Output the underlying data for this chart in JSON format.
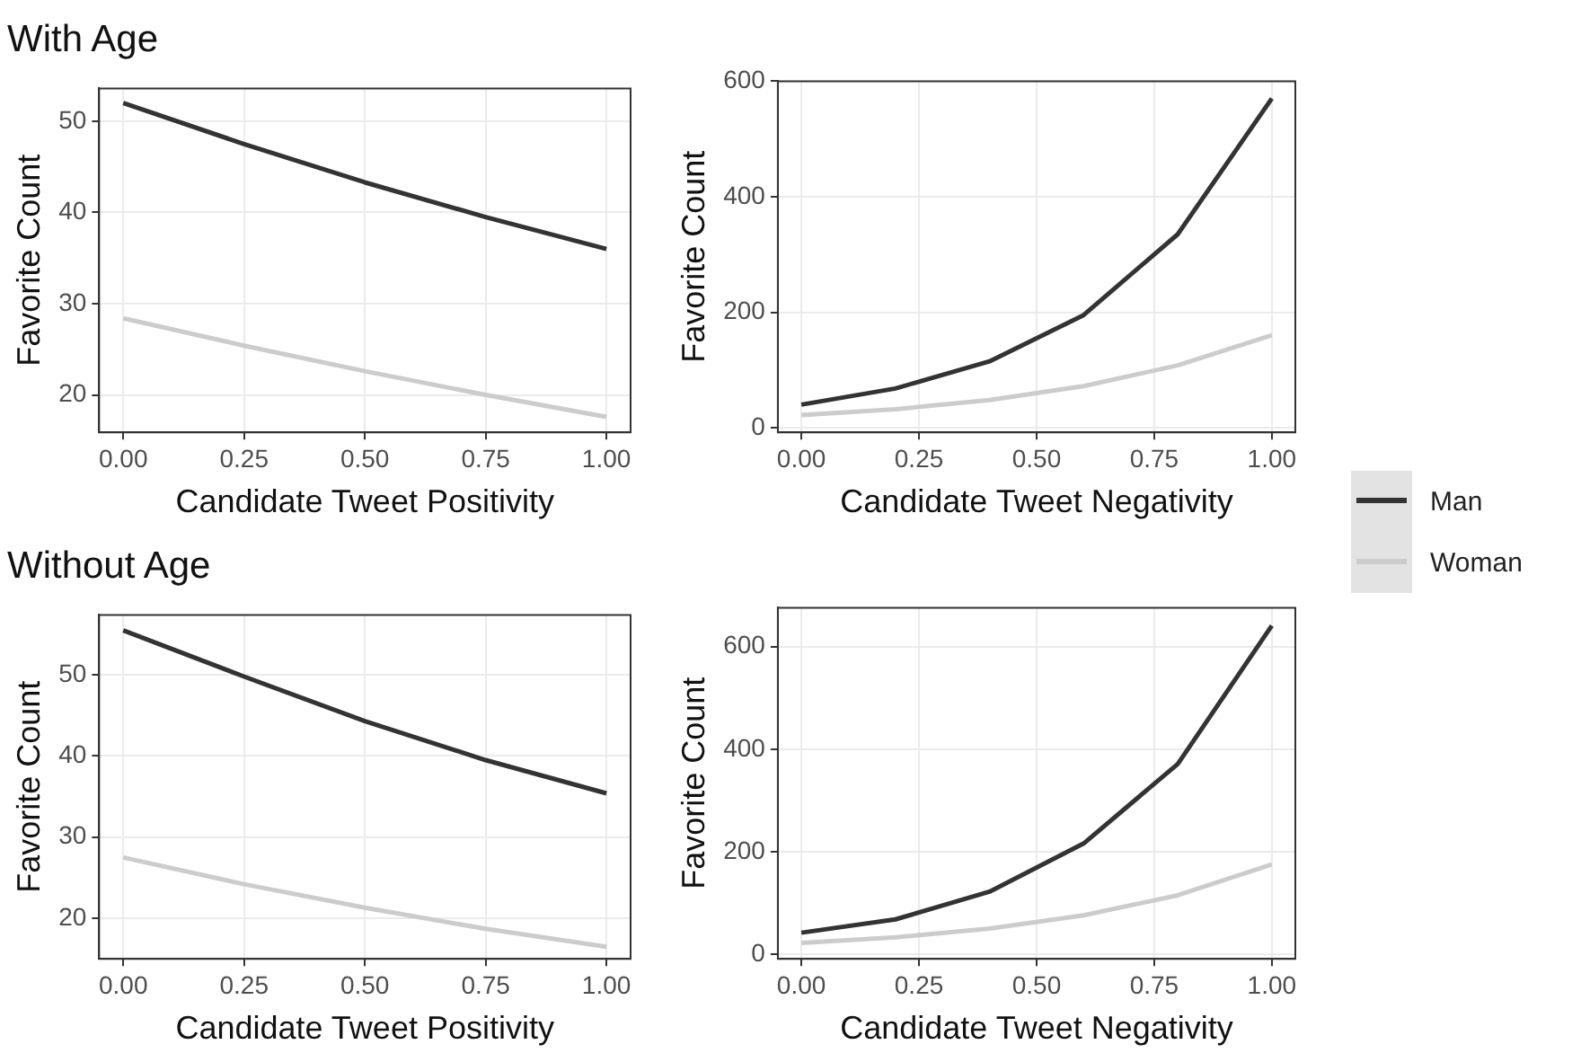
{
  "chart_data": [
    {
      "type": "line",
      "title": "With Age",
      "xlabel": "Candidate Tweet Positivity",
      "ylabel": "Favorite Count",
      "x": [
        0,
        0.25,
        0.5,
        0.75,
        1
      ],
      "xlim": [
        -0.05,
        1.05
      ],
      "xticks": [
        {
          "value": 0,
          "label": "0.00"
        },
        {
          "value": 0.25,
          "label": "0.25"
        },
        {
          "value": 0.5,
          "label": "0.50"
        },
        {
          "value": 0.75,
          "label": "0.75"
        },
        {
          "value": 1,
          "label": "1.00"
        }
      ],
      "ylim": [
        15.9,
        53.6
      ],
      "yticks": [
        20,
        30,
        40,
        50
      ],
      "grid": true,
      "legend": "right",
      "marker": "none",
      "series": [
        {
          "name": "Man",
          "color": "#333333",
          "values": [
            52,
            47.5,
            43.3,
            39.5,
            36
          ]
        },
        {
          "name": "Woman",
          "color": "#cccccc",
          "values": [
            28.4,
            25.4,
            22.6,
            20,
            17.6
          ]
        }
      ]
    },
    {
      "type": "line",
      "xlabel": "Candidate Tweet Negativity",
      "ylabel": "Favorite Count",
      "x": [
        0,
        0.2,
        0.4,
        0.6,
        0.8,
        1
      ],
      "xlim": [
        -0.05,
        1.05
      ],
      "xticks": [
        {
          "value": 0,
          "label": "0.00"
        },
        {
          "value": 0.25,
          "label": "0.25"
        },
        {
          "value": 0.5,
          "label": "0.50"
        },
        {
          "value": 0.75,
          "label": "0.75"
        },
        {
          "value": 1,
          "label": "1.00"
        }
      ],
      "ylim": [
        -8,
        600
      ],
      "yticks": [
        0,
        200,
        400,
        600
      ],
      "grid": true,
      "marker": "none",
      "series": [
        {
          "color": "#333333",
          "values": [
            40,
            68,
            115,
            195,
            335,
            570
          ]
        },
        {
          "color": "#cccccc",
          "values": [
            22,
            32,
            48,
            72,
            108,
            160
          ]
        }
      ]
    },
    {
      "type": "line",
      "title": "Without Age",
      "xlabel": "Candidate Tweet Positivity",
      "ylabel": "Favorite Count",
      "x": [
        0,
        0.25,
        0.5,
        0.75,
        1
      ],
      "xlim": [
        -0.05,
        1.05
      ],
      "xticks": [
        {
          "value": 0,
          "label": "0.00"
        },
        {
          "value": 0.25,
          "label": "0.25"
        },
        {
          "value": 0.5,
          "label": "0.50"
        },
        {
          "value": 0.75,
          "label": "0.75"
        },
        {
          "value": 1,
          "label": "1.00"
        }
      ],
      "ylim": [
        15,
        57.4
      ],
      "yticks": [
        20,
        30,
        40,
        50
      ],
      "grid": true,
      "marker": "none",
      "series": [
        {
          "color": "#333333",
          "values": [
            55.5,
            49.8,
            44.3,
            39.5,
            35.4
          ]
        },
        {
          "color": "#cccccc",
          "values": [
            27.5,
            24.2,
            21.3,
            18.7,
            16.5
          ]
        }
      ]
    },
    {
      "type": "line",
      "xlabel": "Candidate Tweet Negativity",
      "ylabel": "Favorite Count",
      "x": [
        0,
        0.2,
        0.4,
        0.6,
        0.8,
        1
      ],
      "xlim": [
        -0.05,
        1.05
      ],
      "xticks": [
        {
          "value": 0,
          "label": "0.00"
        },
        {
          "value": 0.25,
          "label": "0.25"
        },
        {
          "value": 0.5,
          "label": "0.50"
        },
        {
          "value": 0.75,
          "label": "0.75"
        },
        {
          "value": 1,
          "label": "1.00"
        }
      ],
      "ylim": [
        -9,
        676
      ],
      "yticks": [
        0,
        200,
        400,
        600
      ],
      "grid": true,
      "marker": "none",
      "series": [
        {
          "color": "#333333",
          "values": [
            42,
            68,
            122,
            216,
            371,
            641
          ]
        },
        {
          "color": "#cccccc",
          "values": [
            22,
            33,
            50,
            76,
            115,
            175
          ]
        }
      ]
    }
  ]
}
